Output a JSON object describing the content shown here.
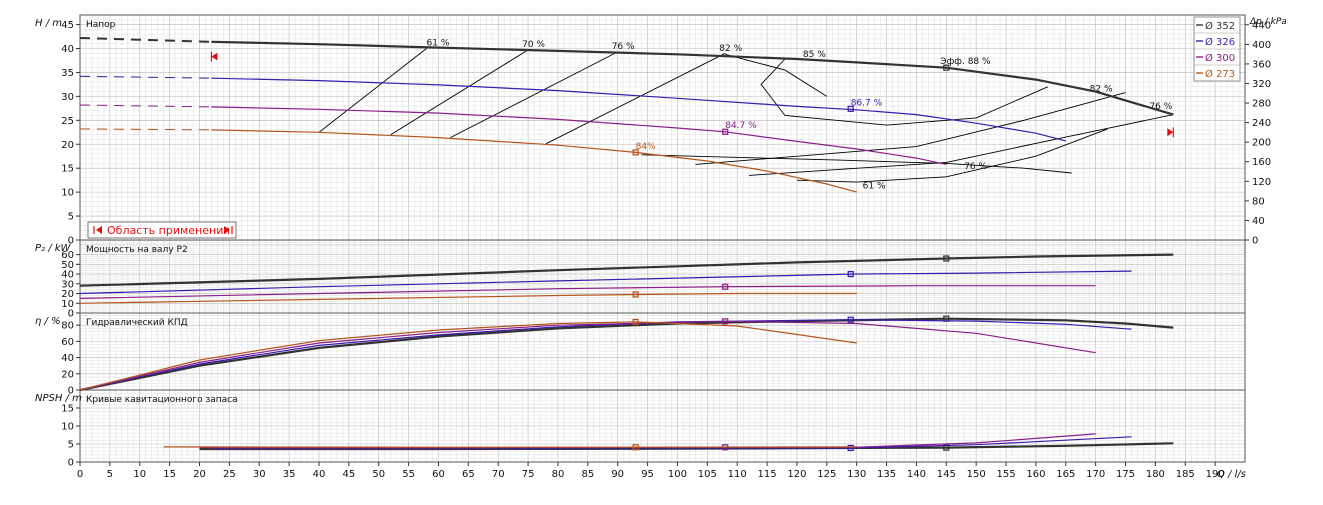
{
  "chart_data": {
    "type": "line",
    "x_axis": {
      "label": "Q / l/s",
      "range": [
        0,
        195
      ],
      "ticks": [
        0,
        5,
        10,
        15,
        20,
        25,
        30,
        35,
        40,
        45,
        50,
        55,
        60,
        65,
        70,
        75,
        80,
        85,
        90,
        95,
        100,
        105,
        110,
        115,
        120,
        125,
        130,
        135,
        140,
        145,
        150,
        155,
        160,
        165,
        170,
        175,
        180,
        185,
        190
      ]
    },
    "colors": {
      "d352": "#333333",
      "d326": "#3b1ab0",
      "d300": "#8a1e8a",
      "d273": "#b5561c",
      "iso": "#000000",
      "marker": "#e01010"
    },
    "legend": [
      {
        "key": "d352",
        "label": "Ø 352"
      },
      {
        "key": "d326",
        "label": "Ø 326"
      },
      {
        "key": "d300",
        "label": "Ø 300"
      },
      {
        "key": "d273",
        "label": "Ø 273"
      }
    ],
    "panels": [
      {
        "id": "head",
        "title": "Напор",
        "ylabel": "H / m",
        "ylim": [
          0,
          47
        ],
        "yticks": [
          0,
          5,
          10,
          15,
          20,
          25,
          30,
          35,
          40,
          45
        ],
        "right_axis": {
          "label": "Δp / kPa",
          "range": [
            0,
            460
          ],
          "ticks": [
            0,
            40,
            80,
            120,
            160,
            200,
            240,
            280,
            320,
            360,
            400,
            440
          ]
        },
        "series": [
          {
            "key": "d352",
            "dashed_x": [
              0,
              22
            ],
            "dashed_y": [
              42.2,
              41.4
            ],
            "x": [
              22,
              40,
              60,
              80,
              100,
              120,
              130,
              145,
              160,
              170,
              183
            ],
            "y": [
              41.4,
              40.9,
              40.2,
              39.5,
              38.8,
              37.8,
              37.1,
              36.0,
              33.5,
              31.0,
              26.2
            ],
            "marker": [
              145,
              36.0
            ],
            "width": 2
          },
          {
            "key": "d326",
            "dashed_x": [
              0,
              22
            ],
            "dashed_y": [
              34.2,
              33.8
            ],
            "x": [
              22,
              40,
              60,
              80,
              100,
              120,
              130,
              140,
              150,
              160,
              165
            ],
            "y": [
              33.8,
              33.3,
              32.4,
              31.2,
              29.6,
              27.9,
              27.2,
              26.2,
              24.4,
              22.3,
              20.7
            ],
            "marker": [
              129,
              27.4
            ],
            "width": 1
          },
          {
            "key": "d300",
            "dashed_x": [
              0,
              22
            ],
            "dashed_y": [
              28.2,
              27.8
            ],
            "x": [
              22,
              40,
              60,
              80,
              100,
              108,
              120,
              130,
              140,
              145
            ],
            "y": [
              27.8,
              27.3,
              26.5,
              25.2,
              23.4,
              22.6,
              20.6,
              19.0,
              17.1,
              15.8
            ],
            "marker": [
              108,
              22.6
            ],
            "width": 1
          },
          {
            "key": "d273",
            "dashed_x": [
              0,
              22
            ],
            "dashed_y": [
              23.2,
              23.0
            ],
            "x": [
              22,
              40,
              60,
              80,
              93,
              105,
              115,
              125,
              130
            ],
            "y": [
              23.0,
              22.5,
              21.4,
              19.8,
              18.3,
              16.5,
              14.4,
              11.7,
              10.0
            ],
            "marker": [
              93,
              18.3
            ],
            "width": 1
          }
        ],
        "efficiency_curves": [
          {
            "x": [
              40,
              58
            ],
            "y": [
              22.5,
              40.0
            ]
          },
          {
            "x": [
              52,
              75
            ],
            "y": [
              22.0,
              39.7
            ]
          },
          {
            "x": [
              62,
              90
            ],
            "y": [
              21.4,
              39.3
            ]
          },
          {
            "x": [
              78,
              108
            ],
            "y": [
              20.1,
              39.0
            ]
          },
          {
            "x": [
              94,
              127,
              145,
              158,
              166
            ],
            "y": [
              17.8,
              16.7,
              16.0,
              15.0,
              14.0
            ]
          },
          {
            "x": [
              103,
              140,
              158,
              175
            ],
            "y": [
              15.8,
              19.5,
              25.0,
              30.8
            ]
          },
          {
            "x": [
              112,
              145,
              165,
              183
            ],
            "y": [
              13.5,
              16.2,
              21.5,
              26.2
            ]
          },
          {
            "x": [
              120,
              130,
              145,
              160,
              172
            ],
            "y": [
              12.5,
              12.1,
              13.2,
              17.5,
              23.2
            ]
          },
          {
            "x": [
              108,
              118,
              125
            ],
            "y": [
              38.8,
              35.5,
              30.0
            ]
          },
          {
            "x": [
              118,
              114,
              118,
              135,
              150,
              162
            ],
            "y": [
              37.8,
              32.5,
              26.0,
              24.0,
              25.5,
              32.0
            ]
          }
        ],
        "efficiency_labels": [
          {
            "text": "61 %",
            "x": 58,
            "y": 40.6
          },
          {
            "text": "70 %",
            "x": 74,
            "y": 40.3
          },
          {
            "text": "76 %",
            "x": 89,
            "y": 39.9
          },
          {
            "text": "82 %",
            "x": 107,
            "y": 39.5
          },
          {
            "text": "85 %",
            "x": 121,
            "y": 38.2
          },
          {
            "text": "Эфф. 88 %",
            "x": 144,
            "y": 36.8
          },
          {
            "text": "82 %",
            "x": 169,
            "y": 31.0
          },
          {
            "text": "76 %",
            "x": 179,
            "y": 27.4
          },
          {
            "text": "76 %",
            "x": 148,
            "y": 14.8
          },
          {
            "text": "61 %",
            "x": 131,
            "y": 10.8
          }
        ],
        "point_labels": [
          {
            "text": "86.7 %",
            "x": 129,
            "y": 28.1,
            "key": "d326"
          },
          {
            "text": "84.7 %",
            "x": 108,
            "y": 23.4,
            "key": "d300"
          },
          {
            "text": "84%",
            "x": 93,
            "y": 19.0,
            "key": "d273"
          }
        ],
        "range_markers": [
          {
            "x": 22,
            "y": 38.3,
            "dir": "left"
          },
          {
            "x": 183,
            "y": 22.5,
            "dir": "right"
          }
        ],
        "application_label": "Область применения"
      },
      {
        "id": "power",
        "title": "Мощность на валу P2",
        "ylabel": "P₂ / kW",
        "ylim": [
          0,
          75
        ],
        "yticks": [
          0,
          10,
          20,
          30,
          40,
          50,
          60
        ],
        "series": [
          {
            "key": "d352",
            "x": [
              0,
              40,
              80,
              120,
              145,
              160,
              183
            ],
            "y": [
              28,
              35,
              44,
              52,
              56,
              58,
              60
            ],
            "marker": [
              145,
              56
            ],
            "width": 2
          },
          {
            "key": "d326",
            "x": [
              0,
              40,
              80,
              129,
              150,
              176
            ],
            "y": [
              20,
              27,
              33,
              40,
              41,
              43
            ],
            "marker": [
              129,
              40
            ],
            "width": 1
          },
          {
            "key": "d300",
            "x": [
              0,
              40,
              80,
              108,
              140,
              170
            ],
            "y": [
              15,
              20,
              25,
              27,
              28,
              28
            ],
            "marker": [
              108,
              27
            ],
            "width": 1
          },
          {
            "key": "d273",
            "x": [
              0,
              40,
              80,
              93,
              110,
              130
            ],
            "y": [
              10,
              14,
              18,
              19,
              20,
              20
            ],
            "marker": [
              93,
              19
            ],
            "width": 1
          }
        ]
      },
      {
        "id": "efficiency",
        "title": "Гидравлический КПД",
        "ylabel": "η / %",
        "ylim": [
          0,
          95
        ],
        "yticks": [
          0,
          20,
          40,
          60,
          80
        ],
        "series": [
          {
            "key": "d352",
            "x": [
              0,
              20,
              40,
              60,
              80,
              100,
              120,
              145,
              165,
              175,
              183
            ],
            "y": [
              0,
              30,
              52,
              66,
              76,
              82,
              85,
              88,
              86,
              82,
              77
            ],
            "marker": [
              145,
              88
            ],
            "width": 2
          },
          {
            "key": "d326",
            "x": [
              0,
              20,
              40,
              60,
              80,
              100,
              129,
              150,
              165,
              176
            ],
            "y": [
              0,
              32,
              55,
              68,
              78,
              84,
              86.7,
              85,
              81,
              75
            ],
            "marker": [
              129,
              86.7
            ],
            "width": 1
          },
          {
            "key": "d300",
            "x": [
              0,
              20,
              40,
              60,
              80,
              108,
              130,
              150,
              170
            ],
            "y": [
              0,
              34,
              58,
              71,
              80,
              84.7,
              82,
              70,
              46
            ],
            "marker": [
              108,
              84.7
            ],
            "width": 1
          },
          {
            "key": "d273",
            "x": [
              0,
              20,
              40,
              60,
              80,
              93,
              110,
              130
            ],
            "y": [
              0,
              37,
              61,
              74,
              82,
              84,
              79,
              58
            ],
            "marker": [
              93,
              84
            ],
            "width": 1
          }
        ]
      },
      {
        "id": "npsh",
        "title": "Кривые кавитационного запаса",
        "ylabel": "NPSH / m",
        "ylim": [
          0,
          20
        ],
        "yticks": [
          0,
          5,
          10,
          15
        ],
        "series": [
          {
            "key": "d352",
            "x": [
              20,
              60,
              100,
              145,
              165,
              183
            ],
            "y": [
              3.6,
              3.6,
              3.7,
              4.0,
              4.5,
              5.2
            ],
            "marker": [
              145,
              4.0
            ],
            "width": 2
          },
          {
            "key": "d326",
            "x": [
              22,
              60,
              100,
              129,
              150,
              176
            ],
            "y": [
              3.8,
              3.8,
              3.9,
              3.9,
              4.8,
              7.0
            ],
            "marker": [
              129,
              3.9
            ],
            "width": 1
          },
          {
            "key": "d300",
            "x": [
              20,
              60,
              108,
              130,
              150,
              170
            ],
            "y": [
              4.0,
              4.0,
              4.1,
              4.1,
              5.3,
              7.8
            ],
            "marker": [
              108,
              4.1
            ],
            "width": 1
          },
          {
            "key": "d273",
            "x": [
              14,
              60,
              93,
              130
            ],
            "y": [
              4.2,
              4.1,
              4.1,
              4.2
            ],
            "marker": [
              93,
              4.1
            ],
            "width": 1
          }
        ]
      }
    ]
  }
}
